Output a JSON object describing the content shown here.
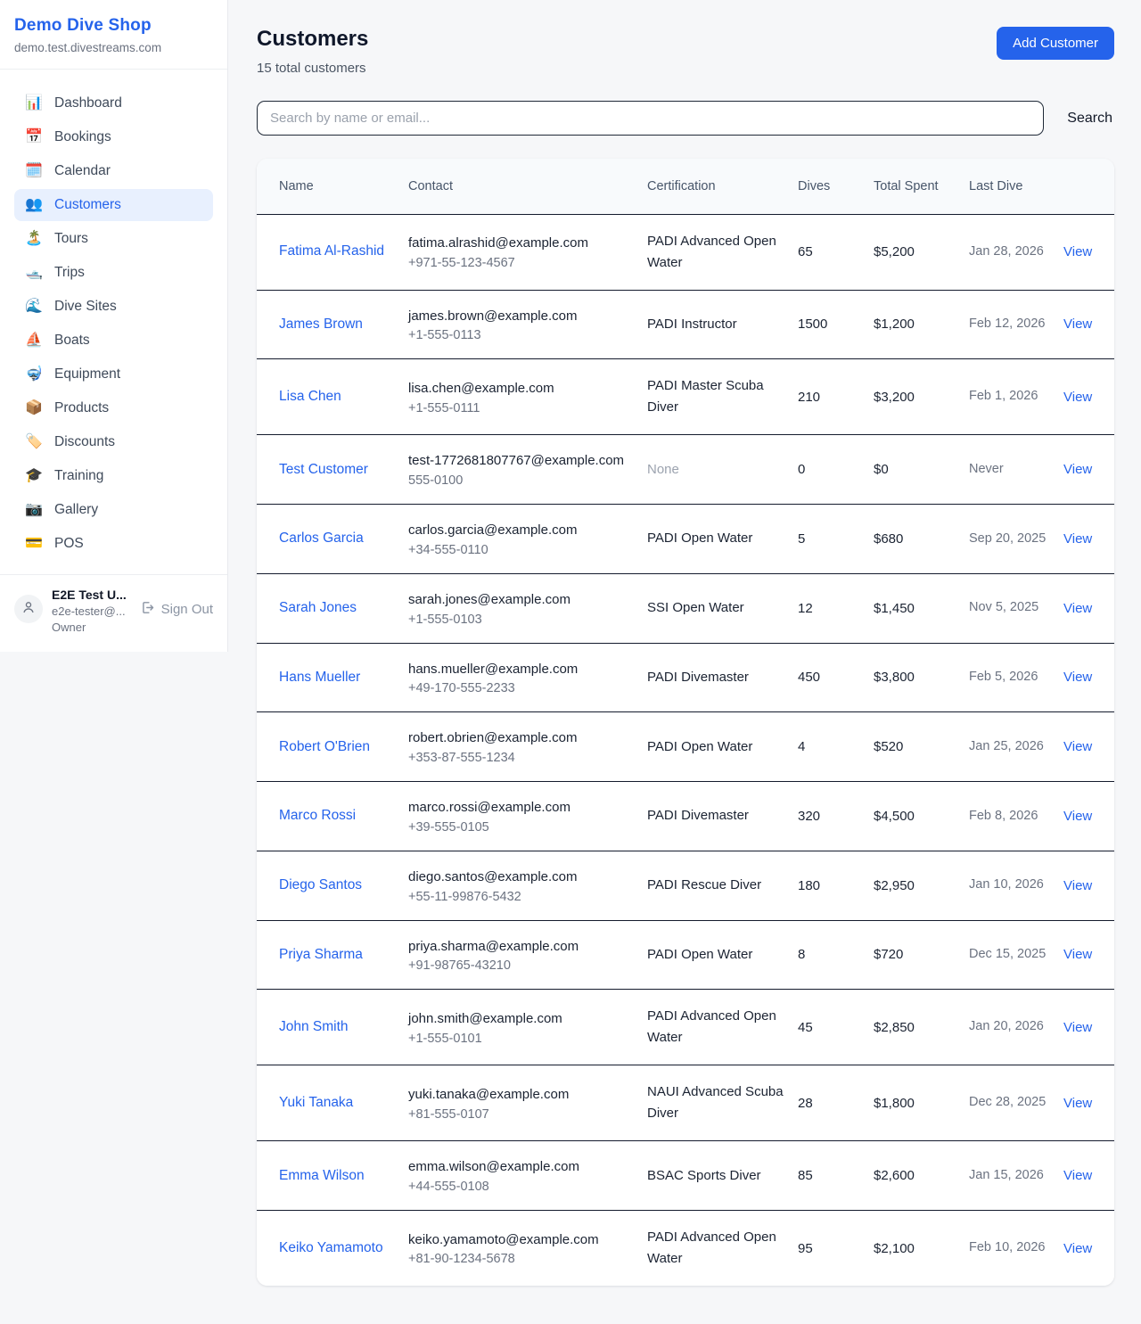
{
  "sidebar": {
    "shop_name": "Demo Dive Shop",
    "shop_domain": "demo.test.divestreams.com",
    "items": [
      {
        "label": "Dashboard",
        "slug": "dashboard",
        "icon": "bar-chart-icon",
        "glyph": "📊",
        "active": false
      },
      {
        "label": "Bookings",
        "slug": "bookings",
        "icon": "calendar-date-icon",
        "glyph": "📅",
        "active": false
      },
      {
        "label": "Calendar",
        "slug": "calendar",
        "icon": "spiral-calendar-icon",
        "glyph": "🗓️",
        "active": false
      },
      {
        "label": "Customers",
        "slug": "customers",
        "icon": "people-icon",
        "glyph": "👥",
        "active": true
      },
      {
        "label": "Tours",
        "slug": "tours",
        "icon": "island-icon",
        "glyph": "🏝️",
        "active": false
      },
      {
        "label": "Trips",
        "slug": "trips",
        "icon": "motorboat-icon",
        "glyph": "🛥️",
        "active": false
      },
      {
        "label": "Dive Sites",
        "slug": "dive-sites",
        "icon": "wave-icon",
        "glyph": "🌊",
        "active": false
      },
      {
        "label": "Boats",
        "slug": "boats",
        "icon": "sailboat-icon",
        "glyph": "⛵",
        "active": false
      },
      {
        "label": "Equipment",
        "slug": "equipment",
        "icon": "diving-mask-icon",
        "glyph": "🤿",
        "active": false
      },
      {
        "label": "Products",
        "slug": "products",
        "icon": "package-icon",
        "glyph": "📦",
        "active": false
      },
      {
        "label": "Discounts",
        "slug": "discounts",
        "icon": "tag-icon",
        "glyph": "🏷️",
        "active": false
      },
      {
        "label": "Training",
        "slug": "training",
        "icon": "graduation-cap-icon",
        "glyph": "🎓",
        "active": false
      },
      {
        "label": "Gallery",
        "slug": "gallery",
        "icon": "camera-icon",
        "glyph": "📷",
        "active": false
      },
      {
        "label": "POS",
        "slug": "pos",
        "icon": "credit-card-icon",
        "glyph": "💳",
        "active": false
      }
    ],
    "user": {
      "name": "E2E Test U...",
      "email": "e2e-tester@...",
      "role": "Owner",
      "sign_out_label": "Sign Out"
    }
  },
  "header": {
    "title": "Customers",
    "subtitle": "15 total customers",
    "add_button_label": "Add Customer"
  },
  "search": {
    "placeholder": "Search by name or email...",
    "button_label": "Search"
  },
  "table": {
    "columns": [
      "Name",
      "Contact",
      "Certification",
      "Dives",
      "Total Spent",
      "Last Dive",
      ""
    ],
    "rows": [
      {
        "name": "Fatima Al-Rashid",
        "email": "fatima.alrashid@example.com",
        "phone": "+971-55-123-4567",
        "certification": "PADI Advanced Open Water",
        "cert_none": false,
        "dives": "65",
        "total_spent": "$5,200",
        "last_dive": "Jan 28, 2026",
        "action": "View"
      },
      {
        "name": "James Brown",
        "email": "james.brown@example.com",
        "phone": "+1-555-0113",
        "certification": "PADI Instructor",
        "cert_none": false,
        "dives": "1500",
        "total_spent": "$1,200",
        "last_dive": "Feb 12, 2026",
        "action": "View"
      },
      {
        "name": "Lisa Chen",
        "email": "lisa.chen@example.com",
        "phone": "+1-555-0111",
        "certification": "PADI Master Scuba Diver",
        "cert_none": false,
        "dives": "210",
        "total_spent": "$3,200",
        "last_dive": "Feb 1, 2026",
        "action": "View"
      },
      {
        "name": "Test Customer",
        "email": "test-1772681807767@example.com",
        "phone": "555-0100",
        "certification": "None",
        "cert_none": true,
        "dives": "0",
        "total_spent": "$0",
        "last_dive": "Never",
        "action": "View"
      },
      {
        "name": "Carlos Garcia",
        "email": "carlos.garcia@example.com",
        "phone": "+34-555-0110",
        "certification": "PADI Open Water",
        "cert_none": false,
        "dives": "5",
        "total_spent": "$680",
        "last_dive": "Sep 20, 2025",
        "action": "View"
      },
      {
        "name": "Sarah Jones",
        "email": "sarah.jones@example.com",
        "phone": "+1-555-0103",
        "certification": "SSI Open Water",
        "cert_none": false,
        "dives": "12",
        "total_spent": "$1,450",
        "last_dive": "Nov 5, 2025",
        "action": "View"
      },
      {
        "name": "Hans Mueller",
        "email": "hans.mueller@example.com",
        "phone": "+49-170-555-2233",
        "certification": "PADI Divemaster",
        "cert_none": false,
        "dives": "450",
        "total_spent": "$3,800",
        "last_dive": "Feb 5, 2026",
        "action": "View"
      },
      {
        "name": "Robert O'Brien",
        "email": "robert.obrien@example.com",
        "phone": "+353-87-555-1234",
        "certification": "PADI Open Water",
        "cert_none": false,
        "dives": "4",
        "total_spent": "$520",
        "last_dive": "Jan 25, 2026",
        "action": "View"
      },
      {
        "name": "Marco Rossi",
        "email": "marco.rossi@example.com",
        "phone": "+39-555-0105",
        "certification": "PADI Divemaster",
        "cert_none": false,
        "dives": "320",
        "total_spent": "$4,500",
        "last_dive": "Feb 8, 2026",
        "action": "View"
      },
      {
        "name": "Diego Santos",
        "email": "diego.santos@example.com",
        "phone": "+55-11-99876-5432",
        "certification": "PADI Rescue Diver",
        "cert_none": false,
        "dives": "180",
        "total_spent": "$2,950",
        "last_dive": "Jan 10, 2026",
        "action": "View"
      },
      {
        "name": "Priya Sharma",
        "email": "priya.sharma@example.com",
        "phone": "+91-98765-43210",
        "certification": "PADI Open Water",
        "cert_none": false,
        "dives": "8",
        "total_spent": "$720",
        "last_dive": "Dec 15, 2025",
        "action": "View"
      },
      {
        "name": "John Smith",
        "email": "john.smith@example.com",
        "phone": "+1-555-0101",
        "certification": "PADI Advanced Open Water",
        "cert_none": false,
        "dives": "45",
        "total_spent": "$2,850",
        "last_dive": "Jan 20, 2026",
        "action": "View"
      },
      {
        "name": "Yuki Tanaka",
        "email": "yuki.tanaka@example.com",
        "phone": "+81-555-0107",
        "certification": "NAUI Advanced Scuba Diver",
        "cert_none": false,
        "dives": "28",
        "total_spent": "$1,800",
        "last_dive": "Dec 28, 2025",
        "action": "View"
      },
      {
        "name": "Emma Wilson",
        "email": "emma.wilson@example.com",
        "phone": "+44-555-0108",
        "certification": "BSAC Sports Diver",
        "cert_none": false,
        "dives": "85",
        "total_spent": "$2,600",
        "last_dive": "Jan 15, 2026",
        "action": "View"
      },
      {
        "name": "Keiko Yamamoto",
        "email": "keiko.yamamoto@example.com",
        "phone": "+81-90-1234-5678",
        "certification": "PADI Advanced Open Water",
        "cert_none": false,
        "dives": "95",
        "total_spent": "$2,100",
        "last_dive": "Feb 10, 2026",
        "action": "View"
      }
    ]
  },
  "colors": {
    "accent_blue": "#2563eb",
    "active_item_bg": "#e8f0fe",
    "page_bg": "#f6f7f9",
    "table_header_bg": "#f8fafc",
    "row_border": "#141b2d",
    "muted_text": "#6b7280"
  }
}
